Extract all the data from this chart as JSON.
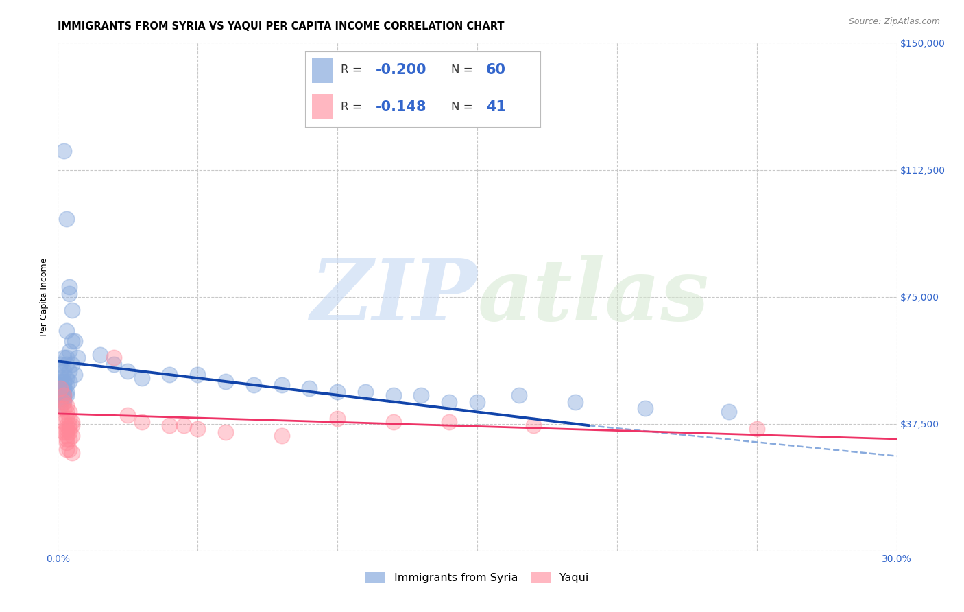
{
  "title": "IMMIGRANTS FROM SYRIA VS YAQUI PER CAPITA INCOME CORRELATION CHART",
  "source": "Source: ZipAtlas.com",
  "ylabel_label": "Per Capita Income",
  "xlim": [
    0.0,
    0.3
  ],
  "ylim": [
    0,
    150000
  ],
  "xticks": [
    0.0,
    0.05,
    0.1,
    0.15,
    0.2,
    0.25,
    0.3
  ],
  "xtick_labels": [
    "0.0%",
    "",
    "",
    "",
    "",
    "",
    "30.0%"
  ],
  "yticks": [
    0,
    37500,
    75000,
    112500,
    150000
  ],
  "ytick_labels": [
    "",
    "$37,500",
    "$75,000",
    "$112,500",
    "$150,000"
  ],
  "grid_color": "#c8c8c8",
  "bg_color": "#ffffff",
  "watermark_zip": "ZIP",
  "watermark_atlas": "atlas",
  "blue_color": "#88aadd",
  "pink_color": "#ff8899",
  "blue_line_color": "#1144aa",
  "pink_line_color": "#ee3366",
  "blue_R": "-0.200",
  "blue_N": "60",
  "pink_R": "-0.148",
  "pink_N": "41",
  "blue_scatter": [
    [
      0.002,
      118000
    ],
    [
      0.003,
      98000
    ],
    [
      0.004,
      78000
    ],
    [
      0.004,
      76000
    ],
    [
      0.005,
      71000
    ],
    [
      0.003,
      65000
    ],
    [
      0.005,
      62000
    ],
    [
      0.006,
      62000
    ],
    [
      0.004,
      59000
    ],
    [
      0.002,
      57000
    ],
    [
      0.003,
      57000
    ],
    [
      0.007,
      57000
    ],
    [
      0.001,
      55000
    ],
    [
      0.003,
      55000
    ],
    [
      0.005,
      55000
    ],
    [
      0.001,
      53000
    ],
    [
      0.002,
      53000
    ],
    [
      0.004,
      53000
    ],
    [
      0.006,
      52000
    ],
    [
      0.001,
      51000
    ],
    [
      0.003,
      51000
    ],
    [
      0.001,
      50000
    ],
    [
      0.002,
      50000
    ],
    [
      0.004,
      50000
    ],
    [
      0.001,
      49000
    ],
    [
      0.002,
      49000
    ],
    [
      0.003,
      49000
    ],
    [
      0.001,
      48000
    ],
    [
      0.002,
      48000
    ],
    [
      0.001,
      47000
    ],
    [
      0.002,
      47000
    ],
    [
      0.003,
      47000
    ],
    [
      0.001,
      46000
    ],
    [
      0.002,
      46000
    ],
    [
      0.003,
      46000
    ],
    [
      0.001,
      45000
    ],
    [
      0.002,
      45000
    ],
    [
      0.001,
      44000
    ],
    [
      0.002,
      44000
    ],
    [
      0.001,
      43000
    ],
    [
      0.015,
      58000
    ],
    [
      0.02,
      55000
    ],
    [
      0.025,
      53000
    ],
    [
      0.03,
      51000
    ],
    [
      0.04,
      52000
    ],
    [
      0.05,
      52000
    ],
    [
      0.06,
      50000
    ],
    [
      0.07,
      49000
    ],
    [
      0.08,
      49000
    ],
    [
      0.09,
      48000
    ],
    [
      0.1,
      47000
    ],
    [
      0.11,
      47000
    ],
    [
      0.12,
      46000
    ],
    [
      0.13,
      46000
    ],
    [
      0.14,
      44000
    ],
    [
      0.15,
      44000
    ],
    [
      0.165,
      46000
    ],
    [
      0.185,
      44000
    ],
    [
      0.21,
      42000
    ],
    [
      0.24,
      41000
    ]
  ],
  "pink_scatter": [
    [
      0.001,
      48000
    ],
    [
      0.002,
      46000
    ],
    [
      0.002,
      44000
    ],
    [
      0.003,
      43000
    ],
    [
      0.001,
      42000
    ],
    [
      0.002,
      42000
    ],
    [
      0.003,
      41000
    ],
    [
      0.004,
      41000
    ],
    [
      0.003,
      39000
    ],
    [
      0.004,
      39000
    ],
    [
      0.002,
      38000
    ],
    [
      0.005,
      38000
    ],
    [
      0.003,
      37000
    ],
    [
      0.004,
      37000
    ],
    [
      0.005,
      37000
    ],
    [
      0.003,
      36000
    ],
    [
      0.004,
      36000
    ],
    [
      0.002,
      35000
    ],
    [
      0.003,
      35000
    ],
    [
      0.004,
      35000
    ],
    [
      0.003,
      34000
    ],
    [
      0.005,
      34000
    ],
    [
      0.003,
      33000
    ],
    [
      0.004,
      33000
    ],
    [
      0.003,
      32000
    ],
    [
      0.003,
      30000
    ],
    [
      0.004,
      30000
    ],
    [
      0.005,
      29000
    ],
    [
      0.02,
      57000
    ],
    [
      0.025,
      40000
    ],
    [
      0.03,
      38000
    ],
    [
      0.04,
      37000
    ],
    [
      0.045,
      37000
    ],
    [
      0.05,
      36000
    ],
    [
      0.06,
      35000
    ],
    [
      0.08,
      34000
    ],
    [
      0.1,
      39000
    ],
    [
      0.12,
      38000
    ],
    [
      0.14,
      38000
    ],
    [
      0.17,
      37000
    ],
    [
      0.25,
      36000
    ]
  ],
  "title_fontsize": 10.5,
  "axis_label_fontsize": 9,
  "tick_fontsize": 10,
  "legend_fontsize": 12,
  "legend_num_fontsize": 15
}
